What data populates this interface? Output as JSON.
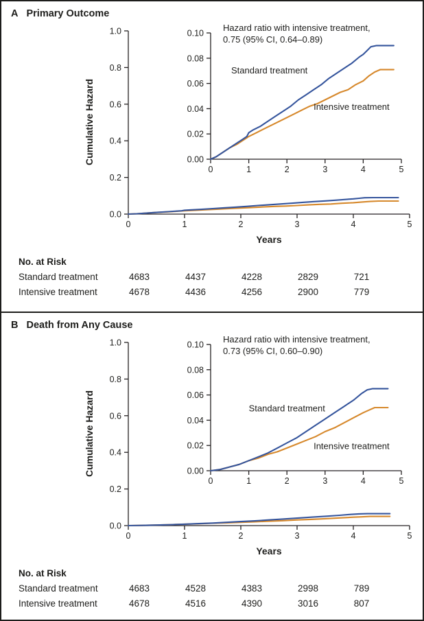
{
  "figure": {
    "background": "#ffffff",
    "border_color": "#1d1d1b"
  },
  "colors": {
    "standard": "#34549c",
    "intensive": "#d6882b",
    "axis": "#231f20",
    "text": "#1d1d1b"
  },
  "panels": [
    {
      "label": "A",
      "title": "Primary Outcome",
      "ylabel": "Cumulative Hazard",
      "xlabel": "Years",
      "annotation_line1": "Hazard ratio with intensive treatment,",
      "annotation_line2": "0.75 (95% CI, 0.64–0.89)",
      "risk_heading": "No. at Risk",
      "risk_rows": [
        {
          "label": "Standard treatment",
          "values": [
            "4683",
            "4437",
            "4228",
            "2829",
            "721"
          ]
        },
        {
          "label": "Intensive treatment",
          "values": [
            "4678",
            "4436",
            "4256",
            "2900",
            "779"
          ]
        }
      ]
    },
    {
      "label": "B",
      "title": "Death from Any Cause",
      "ylabel": "Cumulative Hazard",
      "xlabel": "Years",
      "annotation_line1": "Hazard ratio with intensive treatment,",
      "annotation_line2": "0.73 (95% CI, 0.60–0.90)",
      "risk_heading": "No. at Risk",
      "risk_rows": [
        {
          "label": "Standard treatment",
          "values": [
            "4683",
            "4528",
            "4383",
            "2998",
            "789"
          ]
        },
        {
          "label": "Intensive treatment",
          "values": [
            "4678",
            "4516",
            "4390",
            "3016",
            "807"
          ]
        }
      ]
    }
  ],
  "chart_data": [
    {
      "type": "line",
      "panel": "A",
      "title": "Primary Outcome",
      "xlabel": "Years",
      "ylabel": "Cumulative Hazard",
      "xlim": [
        0,
        5
      ],
      "xticks": [
        0,
        1,
        2,
        3,
        4,
        5
      ],
      "main_ylim": [
        0,
        1.0
      ],
      "main_yticks": [
        0,
        0.2,
        0.4,
        0.6,
        0.8,
        1.0
      ],
      "inset_ylim": [
        0,
        0.1
      ],
      "inset_yticks": [
        0,
        0.02,
        0.04,
        0.06,
        0.08,
        0.1
      ],
      "annotation": "Hazard ratio with intensive treatment, 0.75 (95% CI, 0.64–0.89)",
      "legend_position": "inline-labels",
      "grid": false,
      "series": [
        {
          "name": "Standard treatment",
          "color": "#34549c",
          "label_x": 0.54,
          "label_y": 0.068,
          "points": [
            [
              0,
              0
            ],
            [
              0.15,
              0.002
            ],
            [
              0.3,
              0.005
            ],
            [
              0.5,
              0.009
            ],
            [
              0.7,
              0.013
            ],
            [
              0.85,
              0.016
            ],
            [
              0.95,
              0.018
            ],
            [
              1.0,
              0.021
            ],
            [
              1.1,
              0.023
            ],
            [
              1.3,
              0.026
            ],
            [
              1.5,
              0.03
            ],
            [
              1.7,
              0.034
            ],
            [
              1.9,
              0.038
            ],
            [
              2.1,
              0.042
            ],
            [
              2.3,
              0.047
            ],
            [
              2.5,
              0.051
            ],
            [
              2.7,
              0.055
            ],
            [
              2.9,
              0.059
            ],
            [
              3.1,
              0.064
            ],
            [
              3.3,
              0.068
            ],
            [
              3.5,
              0.072
            ],
            [
              3.7,
              0.076
            ],
            [
              3.9,
              0.081
            ],
            [
              4.0,
              0.083
            ],
            [
              4.1,
              0.086
            ],
            [
              4.2,
              0.089
            ],
            [
              4.35,
              0.09
            ],
            [
              4.8,
              0.09
            ]
          ]
        },
        {
          "name": "Intensive treatment",
          "color": "#d6882b",
          "label_x": 2.7,
          "label_y": 0.039,
          "points": [
            [
              0,
              0
            ],
            [
              0.15,
              0.002
            ],
            [
              0.3,
              0.005
            ],
            [
              0.5,
              0.009
            ],
            [
              0.7,
              0.012
            ],
            [
              0.9,
              0.016
            ],
            [
              1.0,
              0.018
            ],
            [
              1.2,
              0.021
            ],
            [
              1.4,
              0.024
            ],
            [
              1.6,
              0.027
            ],
            [
              1.8,
              0.03
            ],
            [
              2.0,
              0.033
            ],
            [
              2.2,
              0.036
            ],
            [
              2.4,
              0.039
            ],
            [
              2.6,
              0.042
            ],
            [
              2.8,
              0.044
            ],
            [
              3.0,
              0.047
            ],
            [
              3.2,
              0.05
            ],
            [
              3.4,
              0.053
            ],
            [
              3.6,
              0.055
            ],
            [
              3.8,
              0.059
            ],
            [
              4.0,
              0.062
            ],
            [
              4.15,
              0.066
            ],
            [
              4.3,
              0.069
            ],
            [
              4.45,
              0.071
            ],
            [
              4.8,
              0.071
            ]
          ]
        }
      ]
    },
    {
      "type": "line",
      "panel": "B",
      "title": "Death from Any Cause",
      "xlabel": "Years",
      "ylabel": "Cumulative Hazard",
      "xlim": [
        0,
        5
      ],
      "xticks": [
        0,
        1,
        2,
        3,
        4,
        5
      ],
      "main_ylim": [
        0,
        1.0
      ],
      "main_yticks": [
        0,
        0.2,
        0.4,
        0.6,
        0.8,
        1.0
      ],
      "inset_ylim": [
        0,
        0.1
      ],
      "inset_yticks": [
        0,
        0.02,
        0.04,
        0.06,
        0.08,
        0.1
      ],
      "annotation": "Hazard ratio with intensive treatment, 0.73 (95% CI, 0.60–0.90)",
      "legend_position": "inline-labels",
      "grid": false,
      "series": [
        {
          "name": "Standard treatment",
          "color": "#34549c",
          "label_x": 1.0,
          "label_y": 0.047,
          "points": [
            [
              0,
              0
            ],
            [
              0.25,
              0.001
            ],
            [
              0.5,
              0.003
            ],
            [
              0.75,
              0.005
            ],
            [
              1.0,
              0.008
            ],
            [
              1.25,
              0.011
            ],
            [
              1.5,
              0.014
            ],
            [
              1.75,
              0.018
            ],
            [
              2.0,
              0.022
            ],
            [
              2.25,
              0.026
            ],
            [
              2.5,
              0.031
            ],
            [
              2.75,
              0.036
            ],
            [
              3.0,
              0.041
            ],
            [
              3.25,
              0.046
            ],
            [
              3.5,
              0.051
            ],
            [
              3.75,
              0.056
            ],
            [
              3.95,
              0.061
            ],
            [
              4.1,
              0.064
            ],
            [
              4.25,
              0.065
            ],
            [
              4.65,
              0.065
            ]
          ]
        },
        {
          "name": "Intensive treatment",
          "color": "#d6882b",
          "label_x": 2.7,
          "label_y": 0.017,
          "points": [
            [
              0,
              0
            ],
            [
              0.25,
              0.001
            ],
            [
              0.5,
              0.003
            ],
            [
              0.75,
              0.005
            ],
            [
              1.0,
              0.008
            ],
            [
              1.25,
              0.01
            ],
            [
              1.5,
              0.013
            ],
            [
              1.75,
              0.015
            ],
            [
              2.0,
              0.018
            ],
            [
              2.25,
              0.021
            ],
            [
              2.5,
              0.024
            ],
            [
              2.75,
              0.027
            ],
            [
              3.0,
              0.031
            ],
            [
              3.25,
              0.034
            ],
            [
              3.5,
              0.038
            ],
            [
              3.75,
              0.042
            ],
            [
              4.0,
              0.046
            ],
            [
              4.15,
              0.048
            ],
            [
              4.3,
              0.05
            ],
            [
              4.65,
              0.05
            ]
          ]
        }
      ]
    }
  ]
}
